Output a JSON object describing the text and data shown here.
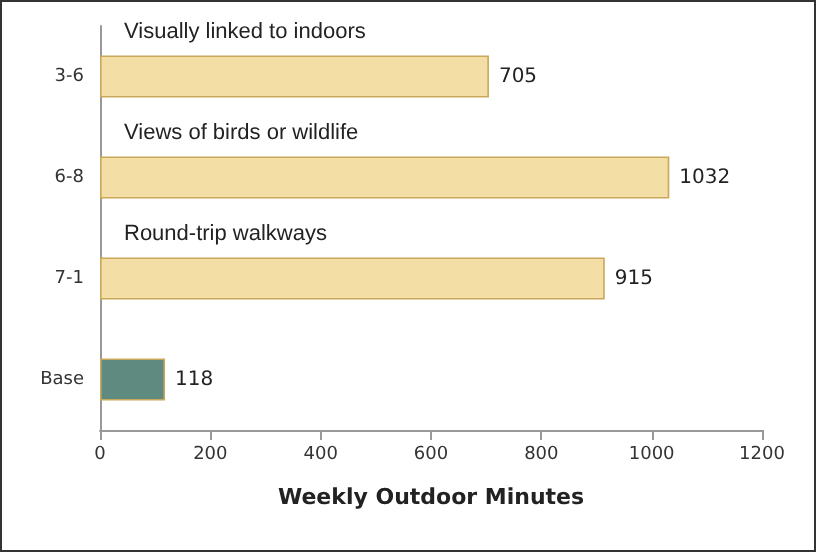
{
  "chart_data": {
    "type": "bar",
    "orientation": "horizontal",
    "categories": [
      "3-6",
      "6-8",
      "7-1",
      "Base"
    ],
    "values": [
      705,
      1032,
      915,
      118
    ],
    "colors": [
      "#f3dea6",
      "#f3dea6",
      "#f3dea6",
      "#5f8a80"
    ],
    "xlabel": "Weekly Outdoor Minutes",
    "xlim": [
      0,
      1200
    ],
    "xticks": [
      0,
      200,
      400,
      600,
      800,
      1000,
      1200
    ],
    "data_labels": true,
    "grid": false,
    "annotations": [
      "Visually linked to indoors",
      "Views of birds or wildlife",
      "Round-trip walkways"
    ]
  }
}
